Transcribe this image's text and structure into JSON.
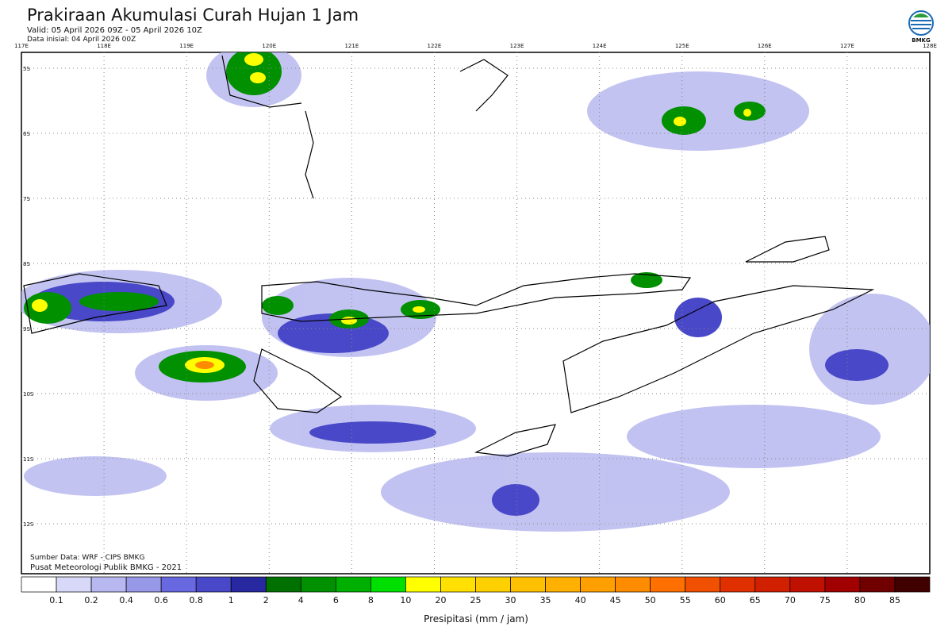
{
  "header": {
    "title": "Prakiraan Akumulasi Curah Hujan 1 Jam",
    "valid": "Valid: 05 April 2026 09Z - 05 April 2026 10Z",
    "init": "Data inisial: 04 April 2026 00Z",
    "logo": "BMKG"
  },
  "map": {
    "lon_labels": [
      "117E",
      "118E",
      "119E",
      "120E",
      "121E",
      "122E",
      "123E",
      "124E",
      "125E",
      "126E",
      "127E",
      "128E"
    ],
    "lat_labels": [
      "5S",
      "6S",
      "7S",
      "8S",
      "9S",
      "10S",
      "11S",
      "12S"
    ],
    "source": "Sumber Data: WRF - CIPS BMKG",
    "credit": "Pusat Meteorologi Publik BMKG - 2021"
  },
  "legend": {
    "labels": [
      0.1,
      0.2,
      0.4,
      0.6,
      0.8,
      1,
      2,
      4,
      6,
      8,
      10,
      20,
      25,
      30,
      35,
      40,
      45,
      50,
      55,
      60,
      65,
      70,
      75,
      80,
      85
    ],
    "colors": [
      "#ffffff",
      "#d8d8f8",
      "#b8b8f0",
      "#9898e8",
      "#6868e0",
      "#4848c8",
      "#2828a0",
      "#007000",
      "#009000",
      "#00b000",
      "#00e000",
      "#ffff00",
      "#ffe000",
      "#ffd000",
      "#ffc000",
      "#ffb000",
      "#ffa000",
      "#ff8c00",
      "#ff7000",
      "#f05000",
      "#e03000",
      "#d02000",
      "#c01000",
      "#a00000",
      "#700000",
      "#400000"
    ],
    "title": "Presipitasi (mm / jam)"
  }
}
